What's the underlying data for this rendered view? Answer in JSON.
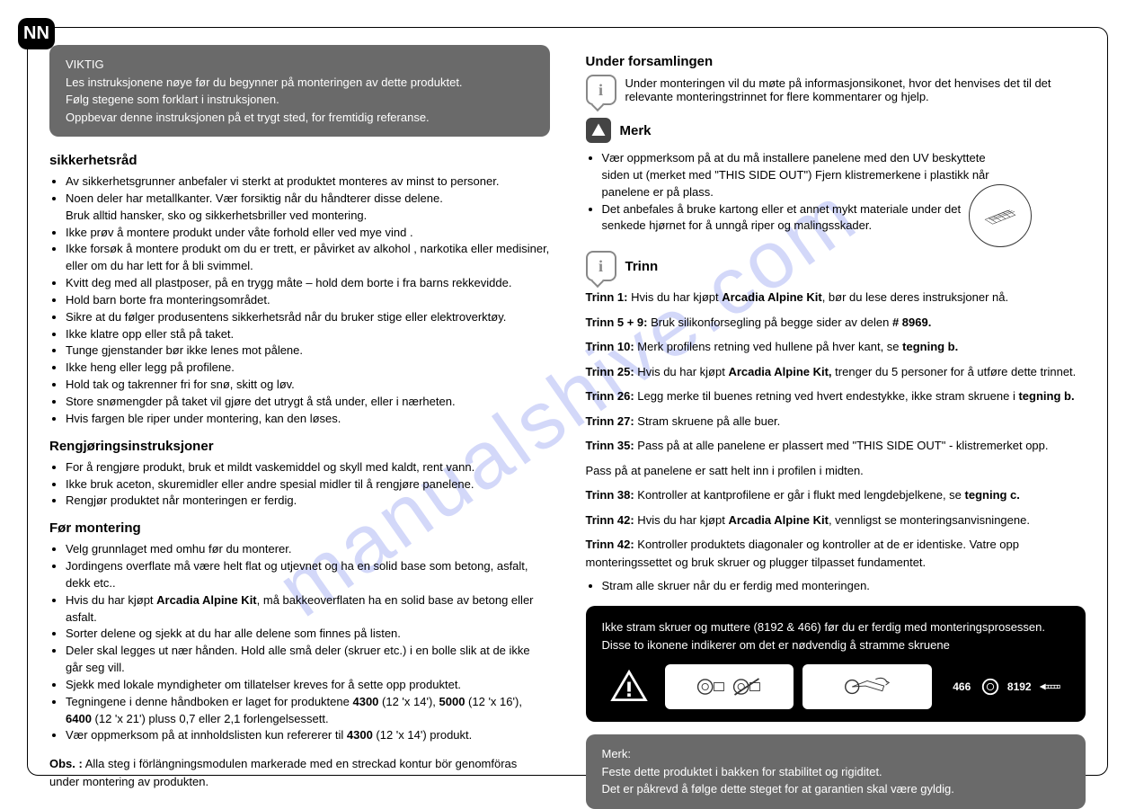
{
  "lang_badge": "NN",
  "watermark": "manualshive.com",
  "important_box": {
    "heading": "VIKTIG",
    "line1": "Les instruksjonene nøye før du begynner på  monteringen av dette produktet.",
    "line2": "Følg stegene som forklart i instruksjonen.",
    "line3": "Oppbevar denne instruksjonen på et trygt sted, for fremtidig referanse."
  },
  "safety": {
    "heading": "sikkerhetsråd",
    "items": [
      "Av sikkerhetsgrunner anbefaler vi sterkt at produktet monteres av minst to personer.",
      "Noen deler har metallkanter. Vær forsiktig når du håndterer disse delene.\nBruk alltid hansker, sko og sikkerhetsbriller ved montering.",
      "Ikke prøv å montere produkt under våte forhold eller ved mye vind .",
      "Ikke forsøk å montere produkt om du er trett, er påvirket av alkohol , narkotika eller medisiner, eller om du har lett for å bli svimmel.",
      "Kvitt deg med all plastposer, på en trygg måte – hold dem borte i fra barns rekkevidde.",
      "Hold barn borte fra monteringsområdet.",
      "Sikre at du følger produsentens sikkerhetsråd når du bruker stige eller elektroverktøy.",
      "Ikke klatre opp eller stå på taket.",
      "Tunge gjenstander bør ikke lenes mot pålene.",
      "Ikke heng eller legg på profilene.",
      "Hold tak og takrenner fri for snø, skitt og løv.",
      "Store snømengder på taket vil gjøre det utrygt å stå under, eller i nærheten.",
      "Hvis fargen ble riper under montering, kan den løses."
    ]
  },
  "cleaning": {
    "heading": "Rengjøringsinstruksjoner",
    "items": [
      "For å rengjøre produkt, bruk et mildt vaskemiddel og skyll med kaldt, rent vann.",
      "Ikke bruk aceton, skuremidler eller andre spesial midler til å rengjøre panelene.",
      "Rengjør produktet når monteringen er ferdig."
    ]
  },
  "before": {
    "heading": "Før montering",
    "items": [
      "Velg grunnlaget med omhu før du monterer.",
      "Jordingens overflate må være helt flat og utjevnet og ha en solid base som betong, asfalt, dekk etc..",
      "Hvis du har kjøpt <b>Arcadia Alpine Kit</b>, må bakkeoverflaten ha en solid base av betong eller asfalt.",
      "Sorter delene og sjekk at du har alle delene som finnes på listen.",
      "Deler skal legges ut nær hånden. Hold alle små deler (skruer etc.) i en bolle slik at de ikke går seg vill.",
      "Sjekk med lokale myndigheter om tillatelser kreves for å sette opp produktet.",
      "Tegningene i denne håndboken er laget for produktene <b>4300</b> (12 'x 14'), <b>5000</b> (12 'x 16'), <b>6400</b> (12 'x 21') pluss 0,7 eller 2,1 forlengelsessett.",
      "Vær oppmerksom på at innholdslisten kun refererer til <b>4300</b> (12 'x 14') produkt."
    ],
    "obs_label": "Obs. :",
    "obs_text": " Alla steg i förlängningsmodulen markerade med en streckad kontur bör genomföras under montering av produkten."
  },
  "assembly": {
    "heading": "Under forsamlingen",
    "info_text": "Under monteringen vil du møte på informasjonsikonet, hvor det henvises det til det relevante monteringstrinnet for flere kommentarer og hjelp."
  },
  "merk": {
    "heading": "Merk",
    "items": [
      "Vær oppmerksom på at du må installere panelene med den UV beskyttete siden ut (merket med \"THIS SIDE OUT\") Fjern klistremerkene i plastikk når panelene  er på plass.",
      "Det anbefales å bruke kartong eller et annet mykt materiale under det senkede hjørnet for å unngå riper og malingsskader."
    ]
  },
  "trinn": {
    "heading": "Trinn",
    "lines": [
      "<b>Trinn 1:</b> Hvis du har kjøpt <b>Arcadia Alpine Kit</b>, bør du lese deres instruksjoner nå.",
      "<b>Trinn 5 + 9:</b> Bruk silikonforsegling på begge sider av delen <b># 8969.</b>",
      "<b>Trinn 10:</b> Merk profilens retning ved hullene på hver kant, se <b>tegning b.</b>",
      "<b>Trinn 25:</b> Hvis du har kjøpt <b>Arcadia Alpine Kit,</b> trenger du 5 personer for å utføre dette trinnet.",
      "<b>Trinn 26:</b> Legg merke til buenes retning ved hvert endestykke, ikke stram skruene i <b>tegning b.</b>",
      "<b>Trinn 27:</b> Stram skruene på alle buer.",
      "<b>Trinn 35:</b> Pass på at alle panelene er plassert med \"THIS SIDE OUT\" - klistremerket opp.",
      "Pass på at panelene er satt helt inn i profilen i midten.",
      "<b>Trinn 38:</b> Kontroller at kantprofilene er går i flukt med lengdebjelkene, se <b>tegning c.</b>",
      "<b>Trinn 42:</b> Hvis du har kjøpt <b>Arcadia Alpine Kit</b>, vennligst se monteringsanvisningene.",
      "<b>Trinn 42:</b> Kontroller produktets diagonaler og kontroller at de er identiske. Vatre opp monteringssettet og bruk skruer og plugger tilpasset fundamentet."
    ],
    "final_bullet": "Stram alle skruer når du er ferdig med monteringen."
  },
  "black_box": {
    "line1": "Ikke stram skruer og muttere (8192 & 466) før du er ferdig med monteringsprosessen.",
    "line2": "Disse to ikonene indikerer om det er nødvendig å stramme skruene",
    "badge1": "466",
    "badge2": "8192"
  },
  "gray_box": {
    "heading": "Merk:",
    "line1": "Feste dette produktet i bakken for stabilitet og rigiditet.",
    "line2": "Det er påkrevd å følge dette steget for at garantien skal være gyldig."
  }
}
